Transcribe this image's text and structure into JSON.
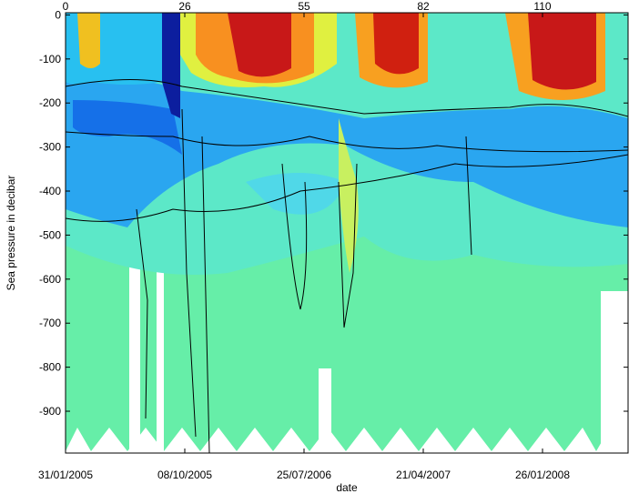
{
  "chart_data": {
    "type": "contour",
    "y_label": "Sea pressure in decibar",
    "x_label": "date",
    "ylim": [
      -995,
      5
    ],
    "yticks": [
      0,
      -100,
      -200,
      -300,
      -400,
      -500,
      -600,
      -700,
      -800,
      -900
    ],
    "xticks": [
      "31/01/2005",
      "08/10/2005",
      "25/07/2006",
      "21/04/2007",
      "26/01/2008"
    ],
    "x2ticks": [
      0,
      26,
      55,
      82,
      110
    ]
  }
}
